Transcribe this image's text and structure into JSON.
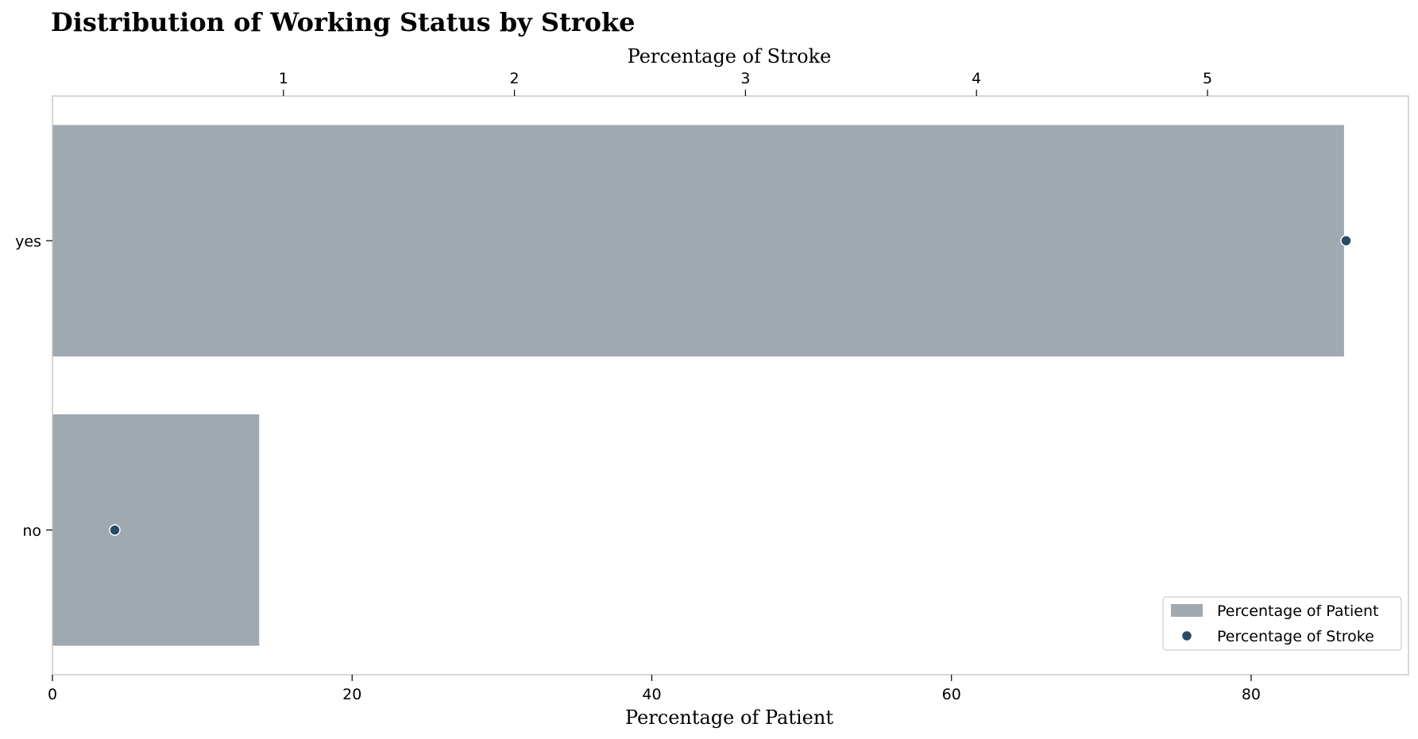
{
  "chart_data": {
    "type": "bar",
    "orientation": "horizontal",
    "title": "Distribution of Working Status by Stroke",
    "categories": [
      "yes",
      "no"
    ],
    "series": [
      {
        "name": "Percentage of Patient",
        "kind": "bar",
        "axis": "bottom",
        "values": [
          86.2,
          13.8
        ],
        "color": "#a0a8b0"
      },
      {
        "name": "Percentage of Stroke",
        "kind": "scatter",
        "axis": "top",
        "values": [
          5.6,
          0.27
        ],
        "color": "#2b4a66"
      }
    ],
    "xlabel_bottom": "Percentage of Patient",
    "xlabel_top": "Percentage of Stroke",
    "xlim_bottom": [
      0,
      90.5
    ],
    "xlim_top": [
      0,
      5.87
    ],
    "xticks_bottom": [
      "0",
      "20",
      "40",
      "60",
      "80"
    ],
    "xticks_top": [
      "1",
      "2",
      "3",
      "4",
      "5"
    ],
    "grid": false,
    "legend_position": "lower-right",
    "colors": {
      "bar": "#a0a8b0",
      "point": "#2b4a66",
      "frame": "#c8c8c8"
    }
  }
}
